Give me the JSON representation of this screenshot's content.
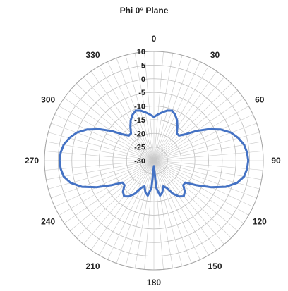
{
  "chart_data": {
    "type": "polar-line",
    "title": "Phi 0° Plane",
    "angle_ticks": [
      0,
      30,
      60,
      90,
      120,
      150,
      180,
      210,
      240,
      270,
      300,
      330
    ],
    "radial_ticks": [
      10,
      5,
      0,
      -5,
      -10,
      -15,
      -20,
      -25,
      -30
    ],
    "rlim": [
      -30,
      10
    ],
    "grid": true,
    "series": [
      {
        "color": "#4472c4",
        "angles": [
          0,
          5,
          10,
          15,
          20,
          25,
          30,
          35,
          40,
          45,
          50,
          55,
          60,
          65,
          70,
          75,
          80,
          85,
          90,
          95,
          100,
          105,
          110,
          115,
          120,
          125,
          130,
          135,
          140,
          145,
          150,
          155,
          160,
          165,
          170,
          175,
          180,
          185,
          190,
          195,
          200,
          205,
          210,
          215,
          220,
          225,
          230,
          235,
          240,
          245,
          250,
          255,
          260,
          265,
          270,
          275,
          280,
          285,
          290,
          295,
          300,
          305,
          310,
          315,
          320,
          325,
          330,
          335,
          340,
          345,
          350,
          355
        ],
        "values": [
          -14,
          -13,
          -12,
          -11,
          -10.5,
          -11.5,
          -13,
          -15,
          -17,
          -17,
          -15,
          -11,
          -7,
          -3,
          0,
          2,
          3.5,
          4.2,
          4.5,
          4.2,
          3.5,
          1.5,
          -2,
          -7,
          -12,
          -16,
          -16,
          -14,
          -13,
          -14,
          -16,
          -19,
          -20,
          -18,
          -17,
          -20,
          -28,
          -20,
          -17,
          -18,
          -20,
          -19,
          -16,
          -14,
          -13,
          -14,
          -16,
          -16,
          -12,
          -7,
          -2,
          1.5,
          3.5,
          4.2,
          4.5,
          4.2,
          3.5,
          2,
          0,
          -3,
          -7,
          -11,
          -15,
          -17,
          -17,
          -15,
          -13,
          -11.5,
          -10.5,
          -11,
          -12,
          -13
        ]
      }
    ]
  }
}
